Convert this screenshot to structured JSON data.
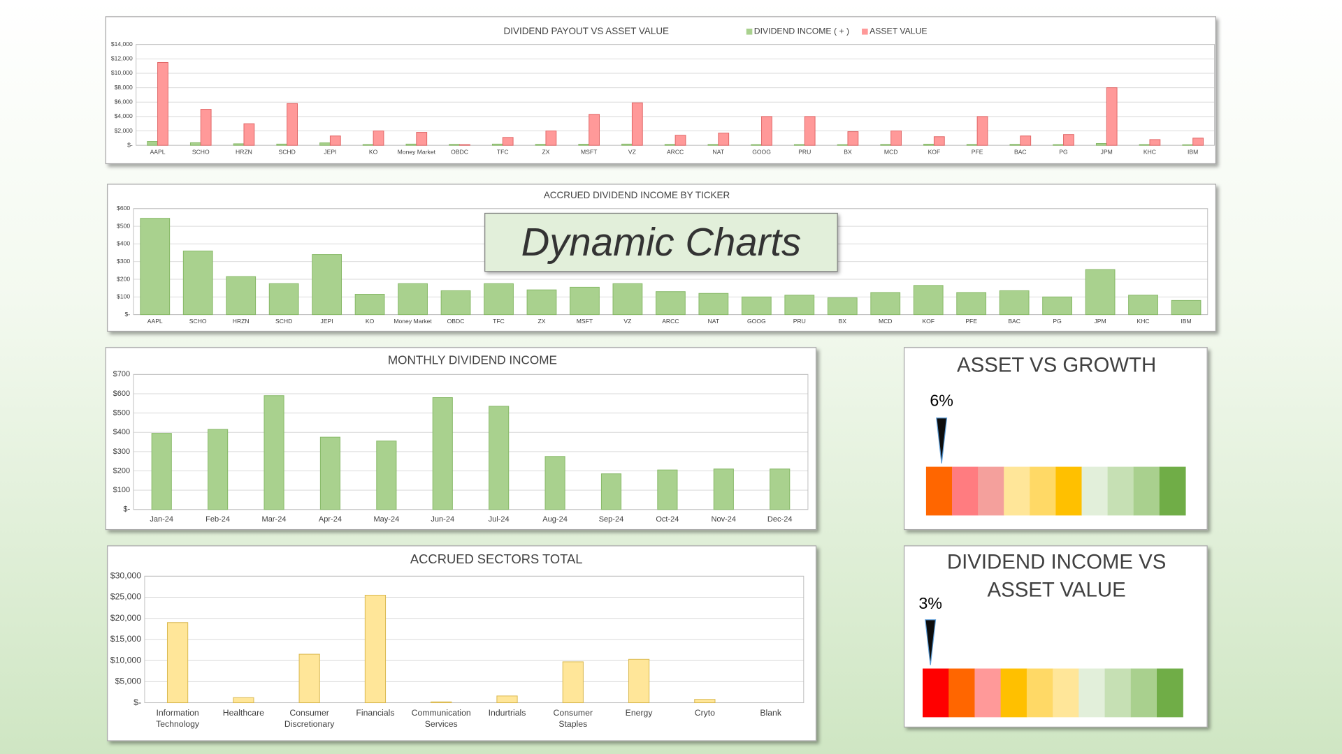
{
  "banner": "Dynamic Charts",
  "chart_data": [
    {
      "type": "bar",
      "title": "DIVIDEND PAYOUT VS ASSET VALUE",
      "legend": "top",
      "grid": true,
      "categories": [
        "AAPL",
        "SCHO",
        "HRZN",
        "SCHD",
        "JEPI",
        "KO",
        "Money Market",
        "OBDC",
        "TFC",
        "ZX",
        "MSFT",
        "VZ",
        "ARCC",
        "NAT",
        "GOOG",
        "PRU",
        "BX",
        "MCD",
        "KOF",
        "PFE",
        "BAC",
        "PG",
        "JPM",
        "KHC",
        "IBM"
      ],
      "series": [
        {
          "name": "DIVIDEND INCOME ( + )",
          "color": "#a9d18e",
          "values": [
            545,
            360,
            215,
            175,
            340,
            115,
            175,
            135,
            175,
            140,
            155,
            175,
            130,
            120,
            100,
            110,
            95,
            125,
            165,
            125,
            135,
            100,
            255,
            110,
            80
          ]
        },
        {
          "name": "ASSET VALUE",
          "color": "#ff9999",
          "values": [
            11500,
            5000,
            3000,
            5800,
            1300,
            2000,
            1800,
            100,
            1100,
            2000,
            4300,
            5900,
            1400,
            1700,
            4000,
            4000,
            1900,
            2000,
            1200,
            4000,
            1300,
            1500,
            8000,
            800,
            1000
          ]
        }
      ],
      "ylim": [
        0,
        14000
      ],
      "yticks": [
        {
          "value": 0,
          "label": "$-"
        },
        {
          "value": 2000,
          "label": "$2,000"
        },
        {
          "value": 4000,
          "label": "$4,000"
        },
        {
          "value": 6000,
          "label": "$6,000"
        },
        {
          "value": 8000,
          "label": "$8,000"
        },
        {
          "value": 10000,
          "label": "$10,000"
        },
        {
          "value": 12000,
          "label": "$12,000"
        },
        {
          "value": 14000,
          "label": "$14,000"
        }
      ]
    },
    {
      "type": "bar",
      "title": "ACCRUED DIVIDEND INCOME BY TICKER",
      "grid": true,
      "color": "#a9d18e",
      "categories": [
        "AAPL",
        "SCHO",
        "HRZN",
        "SCHD",
        "JEPI",
        "KO",
        "Money Market",
        "OBDC",
        "TFC",
        "ZX",
        "MSFT",
        "VZ",
        "ARCC",
        "NAT",
        "GOOG",
        "PRU",
        "BX",
        "MCD",
        "KOF",
        "PFE",
        "BAC",
        "PG",
        "JPM",
        "KHC",
        "IBM"
      ],
      "values": [
        545,
        360,
        215,
        175,
        340,
        115,
        175,
        135,
        175,
        140,
        155,
        175,
        130,
        120,
        100,
        110,
        95,
        125,
        165,
        125,
        135,
        100,
        255,
        110,
        80
      ],
      "ylim": [
        0,
        600
      ],
      "yticks": [
        {
          "value": 0,
          "label": "$-"
        },
        {
          "value": 100,
          "label": "$100"
        },
        {
          "value": 200,
          "label": "$200"
        },
        {
          "value": 300,
          "label": "$300"
        },
        {
          "value": 400,
          "label": "$400"
        },
        {
          "value": 500,
          "label": "$500"
        },
        {
          "value": 600,
          "label": "$600"
        }
      ]
    },
    {
      "type": "bar",
      "title": "MONTHLY DIVIDEND INCOME",
      "grid": true,
      "color": "#a9d18e",
      "categories": [
        "Jan-24",
        "Feb-24",
        "Mar-24",
        "Apr-24",
        "May-24",
        "Jun-24",
        "Jul-24",
        "Aug-24",
        "Sep-24",
        "Oct-24",
        "Nov-24",
        "Dec-24"
      ],
      "values": [
        395,
        415,
        590,
        375,
        355,
        580,
        535,
        275,
        185,
        205,
        210,
        210
      ],
      "ylim": [
        0,
        700
      ],
      "yticks": [
        {
          "value": 0,
          "label": "$-"
        },
        {
          "value": 100,
          "label": "$100"
        },
        {
          "value": 200,
          "label": "$200"
        },
        {
          "value": 300,
          "label": "$300"
        },
        {
          "value": 400,
          "label": "$400"
        },
        {
          "value": 500,
          "label": "$500"
        },
        {
          "value": 600,
          "label": "$600"
        },
        {
          "value": 700,
          "label": "$700"
        }
      ]
    },
    {
      "type": "bar",
      "title": "ACCRUED SECTORS TOTAL",
      "grid": true,
      "color": "#ffe699",
      "categories": [
        "Information Technology",
        "Healthcare",
        "Consumer Discretionary",
        "Financials",
        "Communication Services",
        "Indurtrials",
        "Consumer Staples",
        "Energy",
        "Cryto",
        "Blank"
      ],
      "values": [
        19000,
        1200,
        11500,
        25500,
        200,
        1600,
        9700,
        10300,
        800,
        0
      ],
      "ylim": [
        0,
        30000
      ],
      "yticks": [
        {
          "value": 0,
          "label": "$-"
        },
        {
          "value": 5000,
          "label": "$5,000"
        },
        {
          "value": 10000,
          "label": "$10,000"
        },
        {
          "value": 15000,
          "label": "$15,000"
        },
        {
          "value": 20000,
          "label": "$20,000"
        },
        {
          "value": 25000,
          "label": "$25,000"
        },
        {
          "value": 30000,
          "label": "$30,000"
        }
      ]
    },
    {
      "type": "gauge",
      "title": "ASSET VS GROWTH",
      "values": [
        6
      ],
      "value_labels": [
        "6%"
      ],
      "xlim": [
        0,
        100
      ],
      "colors": [
        "#ff6600",
        "#ff7c80",
        "#f4a09c",
        "#ffe699",
        "#ffd966",
        "#ffc000",
        "#e2efda",
        "#c6e0b4",
        "#a9d08e",
        "#70ad47"
      ]
    },
    {
      "type": "gauge",
      "title": "DIVIDEND INCOME VS ASSET VALUE",
      "values": [
        3
      ],
      "value_labels": [
        "3%"
      ],
      "xlim": [
        0,
        100
      ],
      "colors": [
        "#ff0000",
        "#ff6600",
        "#ff9999",
        "#ffc000",
        "#ffd966",
        "#ffe699",
        "#e2efda",
        "#c6e0b4",
        "#a9d08e",
        "#70ad47"
      ]
    }
  ]
}
